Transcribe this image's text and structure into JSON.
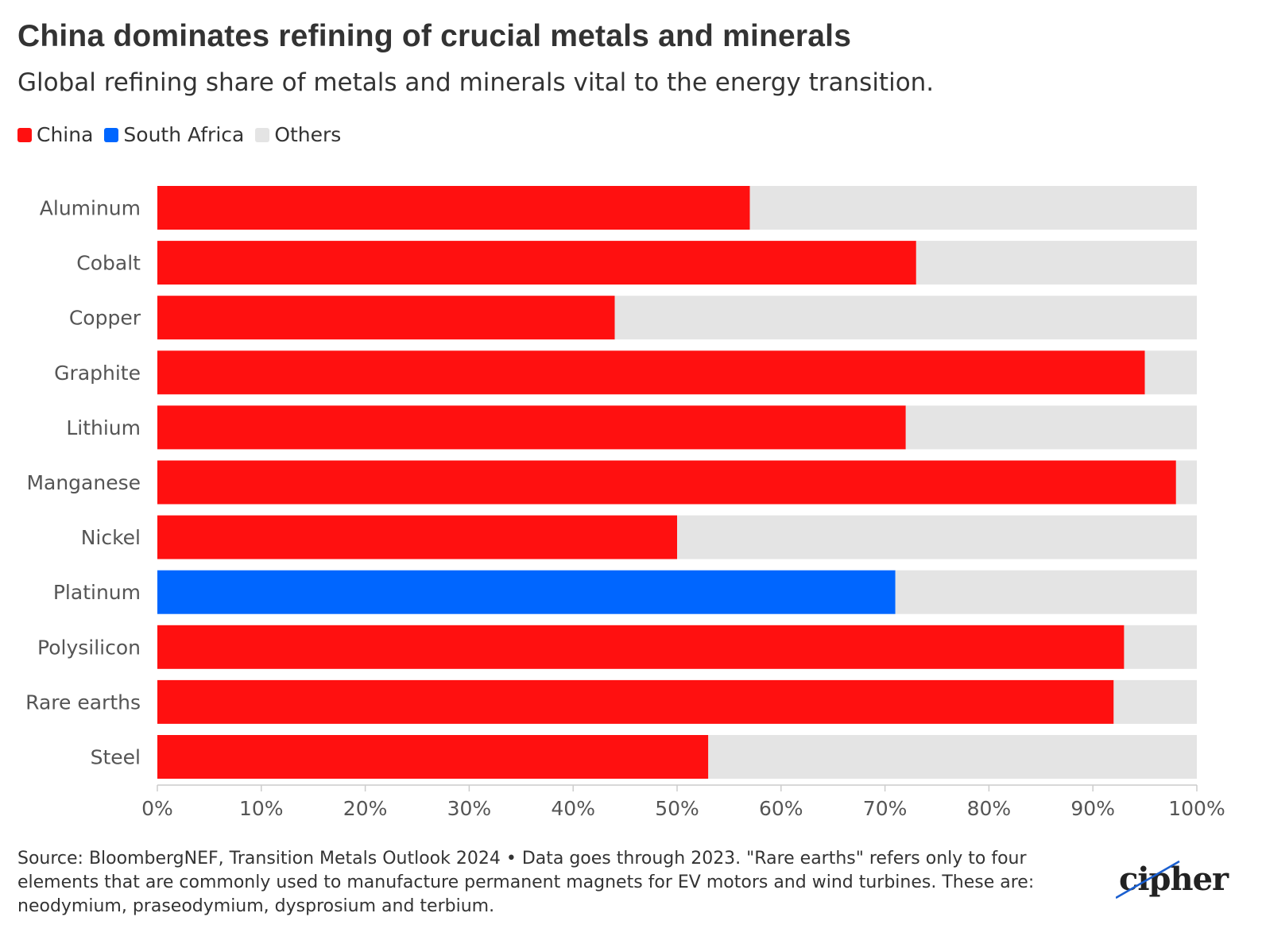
{
  "title": "China dominates refining of crucial metals and minerals",
  "subtitle": "Global refining share of metals and minerals vital to the energy transition.",
  "legend": [
    {
      "label": "China",
      "color": "#ff1010"
    },
    {
      "label": "South Africa",
      "color": "#0066ff"
    },
    {
      "label": "Others",
      "color": "#e4e4e4"
    }
  ],
  "chart_data": {
    "type": "bar",
    "orientation": "horizontal",
    "stacked": true,
    "categories": [
      "Aluminum",
      "Cobalt",
      "Copper",
      "Graphite",
      "Lithium",
      "Manganese",
      "Nickel",
      "Platinum",
      "Polysilicon",
      "Rare earths",
      "Steel"
    ],
    "leader": [
      "China",
      "China",
      "China",
      "China",
      "China",
      "China",
      "China",
      "South Africa",
      "China",
      "China",
      "China"
    ],
    "series": [
      {
        "name": "China",
        "values": [
          57,
          73,
          44,
          95,
          72,
          98,
          50,
          null,
          93,
          92,
          53
        ]
      },
      {
        "name": "South Africa",
        "values": [
          null,
          null,
          null,
          null,
          null,
          null,
          null,
          71,
          null,
          null,
          null
        ]
      },
      {
        "name": "Others",
        "values": [
          43,
          27,
          56,
          5,
          28,
          2,
          50,
          29,
          7,
          8,
          47
        ]
      }
    ],
    "xlim": [
      0,
      100
    ],
    "x_ticks": [
      "0%",
      "10%",
      "20%",
      "30%",
      "40%",
      "50%",
      "60%",
      "70%",
      "80%",
      "90%",
      "100%"
    ],
    "colors": {
      "China": "#ff1010",
      "South Africa": "#0066ff",
      "Others": "#e4e4e4"
    },
    "legend_position": "top-left",
    "grid": false
  },
  "footer": {
    "source": "Source: BloombergNEF, Transition Metals Outlook 2024 • Data goes through 2023. \"Rare earths\" refers only to four elements that are commonly used to manufacture permanent magnets for EV motors and wind turbines. These are: neodymium, praseodymium, dysprosium and terbium."
  },
  "logo": {
    "text": "cipher"
  }
}
